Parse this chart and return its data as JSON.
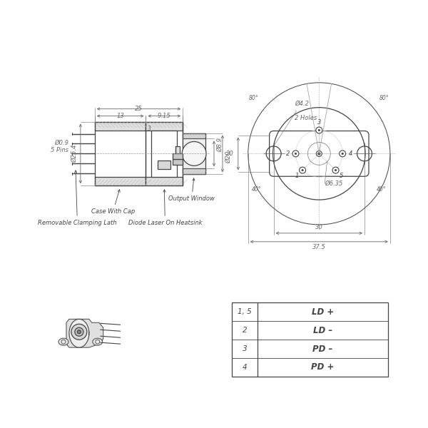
{
  "bg_color": "#ffffff",
  "line_color": "#444444",
  "dim_color": "#666666",
  "hatch_color": "#bbbbbb",
  "table": {
    "rows": [
      [
        "1, 5",
        "LD +"
      ],
      [
        "2",
        "LD –"
      ],
      [
        "3",
        "PD –"
      ],
      [
        "4",
        "PD +"
      ]
    ]
  },
  "dimensions_side": {
    "total_len": "25",
    "len_13": "13",
    "len_915": "9.15",
    "len_3": "3",
    "dia_254": "Ø25.4",
    "dia_09": "Ø0.9",
    "pins_label": "5 Pins",
    "dia_89": "Ø8.9",
    "dia_20": "Ø20"
  },
  "dimensions_front": {
    "dia_42": "Ø4.2",
    "holes_2": "2 Holes",
    "dim_30": "30",
    "dim_375": "37.5",
    "dia_635": "Ø6.35",
    "dim_20": "20",
    "dim_80_left": "80°",
    "dim_80_right": "80°",
    "dim_40_left": "40°",
    "dim_40_right": "40°"
  },
  "labels": {
    "case_with_cap": "Case With Cap",
    "removable_clamp": "Removable Clamping Lath",
    "output_window": "Output Window",
    "diode_laser": "Diode Laser On Heatsink"
  }
}
